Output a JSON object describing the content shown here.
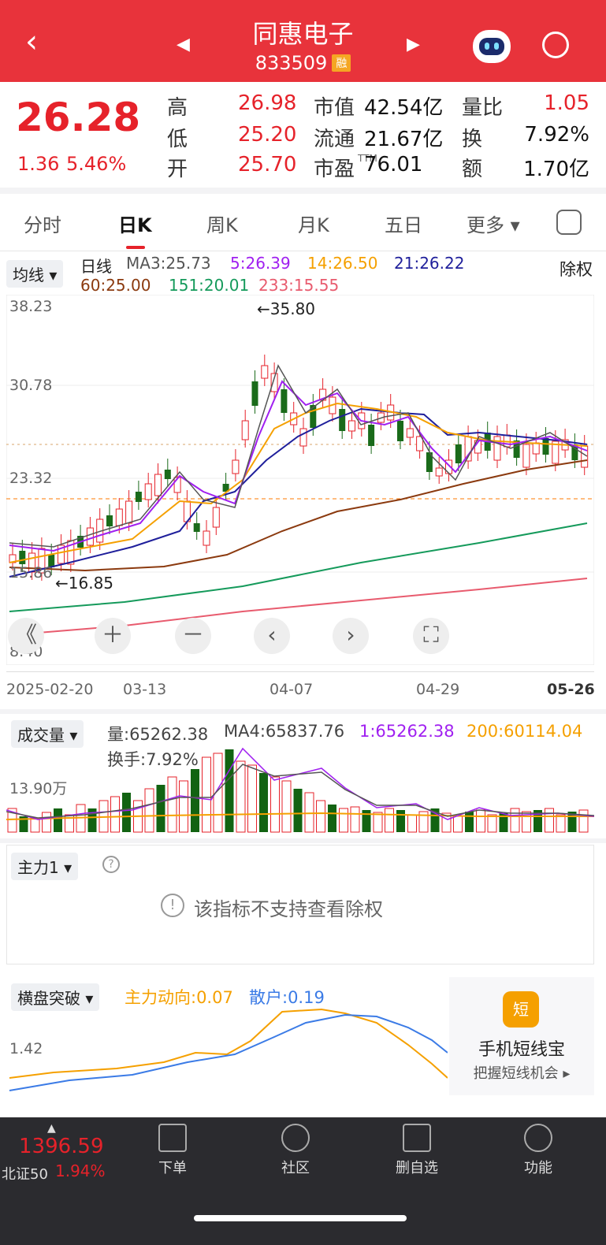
{
  "header": {
    "title": "同惠电子",
    "code": "833509",
    "code_badge": "融",
    "back_icon": "chevron-left-icon",
    "prev_icon": "triangle-left-icon",
    "next_icon": "triangle-right-icon",
    "robot_icon": "robot-icon",
    "search_icon": "search-icon"
  },
  "quote": {
    "price": "26.28",
    "change": "1.36",
    "change_pct": "5.46%",
    "rows": [
      {
        "l1": "高",
        "v1": "26.98",
        "l2": "市值",
        "v2": "42.54亿",
        "l3": "量比",
        "v3": "1.05"
      },
      {
        "l1": "低",
        "v1": "25.20",
        "l2": "流通",
        "v2": "21.67亿",
        "l3": "换",
        "v3": "7.92%"
      },
      {
        "l1": "开",
        "v1": "25.70",
        "l2": "市盈",
        "sup": "TTM",
        "v2": "76.01",
        "l3": "额",
        "v3": "1.70亿"
      }
    ]
  },
  "tabs": [
    "分时",
    "日K",
    "周K",
    "月K",
    "五日",
    "更多"
  ],
  "kline": {
    "ma_button": "均线",
    "ma_label": "日线",
    "ma3": "MA3:25.73",
    "ma5": "5:26.39",
    "ma14": "14:26.50",
    "ma21": "21:26.22",
    "ma60": "60:25.00",
    "ma151": "151:20.01",
    "ma233": "233:15.55",
    "adjust": "除权",
    "y_labels": [
      "38.23",
      "30.78",
      "23.32",
      "15.86",
      "8.40"
    ],
    "high_marker": "←35.80",
    "low_marker": "←16.85",
    "x_labels": [
      "2025-02-20",
      "03-13",
      "04-07",
      "04-29",
      "05-26"
    ],
    "ctrl_icons": [
      "collapse-icon",
      "zoom-in-icon",
      "zoom-out-icon",
      "left-icon",
      "right-icon",
      "fullscreen-icon"
    ],
    "ctrl_glyphs": [
      "《",
      "＋",
      "－",
      "‹",
      "›",
      "⛶"
    ]
  },
  "volume": {
    "button": "成交量",
    "amount": "量:65262.38",
    "ma4": "MA4:65837.76",
    "ma1": "1:65262.38",
    "ma200": "200:60114.04",
    "turnover": "换手:7.92%",
    "y_label": "13.90万"
  },
  "zhuli": {
    "button": "主力1",
    "notice": "该指标不支持查看除权",
    "help_icon": "help-icon",
    "info_icon": "info-icon"
  },
  "hengpan": {
    "button": "横盘突破",
    "main": "主力动向:0.07",
    "retail": "散户:0.19",
    "y_label": "1.42",
    "ad_title": "手机短线宝",
    "ad_sub": "把握短线机会",
    "ad_badge": "短"
  },
  "bottom": {
    "index_value": "1396.59",
    "index_name": "北证50",
    "index_pct": "1.94%",
    "nav": [
      "下单",
      "社区",
      "删自选",
      "功能"
    ]
  },
  "colors": {
    "red": "#e6222a",
    "green": "#1a9b3a",
    "header": "#e8333b",
    "ma5": "#a020f0",
    "ma14": "#f5a000",
    "ma21": "#1f1f9b",
    "ma60": "#8b3a0f",
    "ma151": "#159a5b",
    "ma233": "#e85b6e"
  }
}
